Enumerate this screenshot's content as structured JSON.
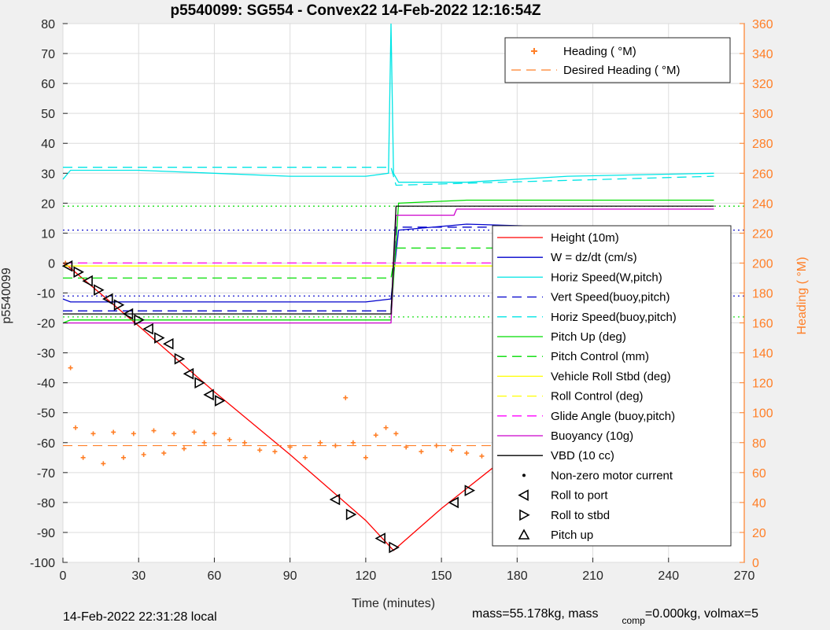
{
  "title": "p5540099: SG554 - Convex22 14-Feb-2022 12:16:54Z",
  "footer": {
    "local_time": "14-Feb-2022 22:31:28 local",
    "mass_text": "mass=55.178kg, mass",
    "comp_sub": "comp",
    "comp_text": "=0.000kg, volmax=5"
  },
  "colors": {
    "height": "#ff0000",
    "w": "#0000cc",
    "horiz": "#00e5e5",
    "pitch": "#00dd00",
    "roll": "#ffff00",
    "glide": "#ff00ff",
    "buoy": "#cc00cc",
    "vbd": "#000000",
    "heading": "#ff7f27",
    "right_axis": "#ff7f27"
  },
  "chart_data": {
    "type": "line",
    "title": "p5540099: SG554 - Convex22 14-Feb-2022 12:16:54Z",
    "xlabel": "Time (minutes)",
    "ylabel": "p5540099",
    "y2label": "Heading (  °M)",
    "xlim": [
      0,
      270
    ],
    "ylim": [
      -100,
      80
    ],
    "y2lim": [
      0,
      360
    ],
    "xticks": [
      0,
      30,
      60,
      90,
      120,
      150,
      180,
      210,
      240,
      270
    ],
    "yticks": [
      -100,
      -90,
      -80,
      -70,
      -60,
      -50,
      -40,
      -30,
      -20,
      -10,
      0,
      10,
      20,
      30,
      40,
      50,
      60,
      70,
      80
    ],
    "y2ticks": [
      0,
      20,
      40,
      60,
      80,
      100,
      120,
      140,
      160,
      180,
      200,
      220,
      240,
      260,
      280,
      300,
      320,
      340,
      360
    ],
    "grid": true,
    "legend_top": [
      {
        "label": "Heading (  °M)",
        "style": "plus",
        "color": "#ff7f27"
      },
      {
        "label": "Desired Heading (    °M)",
        "style": "dashed",
        "color": "#ff7f27"
      }
    ],
    "legend_main": [
      {
        "label": "Height (10m)",
        "style": "solid",
        "color": "#ff0000"
      },
      {
        "label": "W = dz/dt (cm/s)",
        "style": "solid",
        "color": "#0000cc"
      },
      {
        "label": "Horiz Speed(W,pitch)",
        "style": "solid",
        "color": "#00e5e5"
      },
      {
        "label": "Vert Speed(buoy,pitch)",
        "style": "dashed",
        "color": "#0000cc"
      },
      {
        "label": "Horiz Speed(buoy,pitch)",
        "style": "dashed",
        "color": "#00e5e5"
      },
      {
        "label": "Pitch Up (deg)",
        "style": "solid",
        "color": "#00dd00"
      },
      {
        "label": "Pitch Control (mm)",
        "style": "dashed",
        "color": "#00dd00"
      },
      {
        "label": "Vehicle Roll Stbd (deg)",
        "style": "solid",
        "color": "#ffff00"
      },
      {
        "label": "Roll Control (deg)",
        "style": "dashed",
        "color": "#ffff00"
      },
      {
        "label": "Glide Angle (buoy,pitch)",
        "style": "dashed",
        "color": "#ff00ff"
      },
      {
        "label": "Buoyancy (10g)",
        "style": "solid",
        "color": "#cc00cc"
      },
      {
        "label": "VBD (10 cc)",
        "style": "solid",
        "color": "#000000"
      },
      {
        "label": "Non-zero motor current",
        "style": "dot",
        "color": "#000000"
      },
      {
        "label": "Roll to port",
        "style": "tri-left",
        "color": "#000000"
      },
      {
        "label": "Roll to stbd",
        "style": "tri-right",
        "color": "#000000"
      },
      {
        "label": "Pitch up",
        "style": "tri-up",
        "color": "#000000"
      }
    ],
    "series": [
      {
        "name": "Height (10m)",
        "color": "#ff0000",
        "x": [
          0,
          2,
          30,
          60,
          90,
          120,
          131,
          150,
          180,
          210,
          240,
          258
        ],
        "y": [
          0,
          -1,
          -21,
          -43,
          -64,
          -86,
          -96,
          -82,
          -62,
          -40,
          -18,
          2
        ]
      },
      {
        "name": "W = dz/dt (cm/s)",
        "color": "#0000cc",
        "x": [
          0,
          3,
          30,
          60,
          90,
          120,
          130,
          133,
          160,
          200,
          258
        ],
        "y": [
          -12,
          -13,
          -13,
          -13,
          -13,
          -13,
          -12,
          11,
          13,
          12,
          12
        ]
      },
      {
        "name": "Vert Speed(buoy,pitch)",
        "color": "#0000cc",
        "dashed": true,
        "x": [
          0,
          130,
          132,
          258
        ],
        "y": [
          -16,
          -16,
          12,
          12
        ]
      },
      {
        "name": "Horiz Speed(W,pitch)",
        "color": "#00e5e5",
        "x": [
          0,
          3,
          30,
          60,
          90,
          120,
          129,
          130,
          131,
          133,
          160,
          200,
          258
        ],
        "y": [
          28,
          31,
          31,
          30,
          29,
          29,
          30,
          80,
          30,
          27,
          27,
          29,
          30
        ]
      },
      {
        "name": "Horiz Speed(buoy,pitch)",
        "color": "#00e5e5",
        "dashed": true,
        "x": [
          0,
          130,
          132,
          258
        ],
        "y": [
          32,
          32,
          26,
          29
        ]
      },
      {
        "name": "Pitch Up (deg)",
        "color": "#00dd00",
        "x": [
          0,
          3,
          30,
          60,
          90,
          120,
          130,
          133,
          160,
          200,
          258
        ],
        "y": [
          -20,
          -19,
          -19,
          -19,
          -19,
          -19,
          -19,
          20,
          21,
          21,
          21
        ]
      },
      {
        "name": "Pitch Control (mm)",
        "color": "#00dd00",
        "dashed": true,
        "x": [
          0,
          130,
          132,
          258
        ],
        "y": [
          -5,
          -5,
          5,
          5
        ]
      },
      {
        "name": "Vehicle Roll Stbd (deg)",
        "color": "#ffff00",
        "x": [
          0,
          130,
          132,
          258
        ],
        "y": [
          -1,
          -1,
          -1,
          -1
        ]
      },
      {
        "name": "Roll Control (deg)",
        "color": "#ffff00",
        "dashed": true,
        "x": [
          0,
          258
        ],
        "y": [
          0,
          0
        ]
      },
      {
        "name": "Glide Angle (buoy,pitch)",
        "color": "#ff00ff",
        "dashed": true,
        "x": [
          0,
          130,
          132,
          258
        ],
        "y": [
          0,
          0,
          0,
          0
        ]
      },
      {
        "name": "Buoyancy (10g)",
        "color": "#cc00cc",
        "x": [
          0,
          130,
          132,
          155,
          156,
          258
        ],
        "y": [
          -20,
          -20,
          16,
          16,
          18,
          18
        ]
      },
      {
        "name": "VBD (10 cc)",
        "color": "#000000",
        "x": [
          0,
          130,
          132,
          258
        ],
        "y": [
          -17,
          -17,
          19,
          19
        ]
      }
    ],
    "heading_deg": {
      "name": "Heading (  °M)",
      "x": [
        1,
        3,
        5,
        8,
        12,
        16,
        20,
        24,
        28,
        32,
        36,
        40,
        44,
        48,
        52,
        56,
        60,
        66,
        72,
        78,
        84,
        90,
        96,
        102,
        108,
        112,
        115,
        120,
        124,
        128,
        132,
        136,
        142,
        148,
        154,
        160,
        166,
        172,
        178,
        184,
        190,
        196,
        202,
        208,
        214,
        220,
        226,
        232,
        238,
        244,
        250,
        256,
        258
      ],
      "y": [
        200,
        130,
        90,
        70,
        86,
        66,
        87,
        70,
        86,
        72,
        88,
        73,
        86,
        76,
        87,
        80,
        86,
        82,
        80,
        75,
        74,
        77,
        70,
        80,
        78,
        110,
        80,
        70,
        85,
        90,
        86,
        77,
        74,
        78,
        75,
        73,
        71,
        77,
        73,
        75,
        76,
        75,
        74,
        72,
        78,
        76,
        78,
        75,
        79,
        83,
        70,
        78,
        68
      ]
    },
    "desired_heading_deg": 78,
    "reference_lines": [
      {
        "y": 11,
        "color": "#0000cc",
        "style": "dotted"
      },
      {
        "y": -11,
        "color": "#0000cc",
        "style": "dotted"
      },
      {
        "y": 19,
        "color": "#00dd00",
        "style": "dotted"
      },
      {
        "y": -18,
        "color": "#00dd00",
        "style": "dotted"
      }
    ],
    "markers_port": [
      [
        2,
        -1
      ],
      [
        10,
        -6
      ],
      [
        18,
        -12
      ],
      [
        26,
        -17
      ],
      [
        34,
        -22
      ],
      [
        42,
        -27
      ],
      [
        50,
        -37
      ],
      [
        58,
        -44
      ],
      [
        108,
        -79
      ],
      [
        126,
        -92
      ],
      [
        155,
        -80
      ],
      [
        182,
        -60
      ],
      [
        212,
        -37
      ],
      [
        240,
        -15
      ]
    ],
    "markers_stbd": [
      [
        6,
        -3
      ],
      [
        14,
        -9
      ],
      [
        22,
        -14
      ],
      [
        30,
        -19
      ],
      [
        38,
        -25
      ],
      [
        46,
        -32
      ],
      [
        54,
        -40
      ],
      [
        62,
        -46
      ],
      [
        114,
        -84
      ],
      [
        131,
        -95
      ],
      [
        161,
        -76
      ],
      [
        214,
        -35
      ],
      [
        244,
        -11
      ]
    ]
  }
}
